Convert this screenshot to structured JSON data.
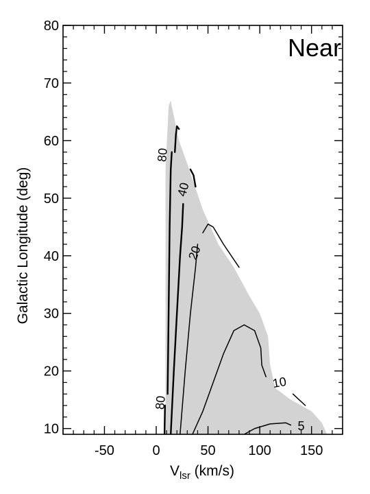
{
  "chart_data": {
    "type": "contour",
    "panel_label": "Near",
    "xlabel": {
      "main": "V",
      "sub": "lsr",
      "unit": " (km/s)"
    },
    "ylabel": "Galactic Longitude (deg)",
    "xlim": [
      -90,
      180
    ],
    "ylim": [
      9,
      80
    ],
    "xticks": [
      -50,
      0,
      50,
      100,
      150
    ],
    "yticks": [
      10,
      20,
      30,
      40,
      50,
      60,
      70,
      80
    ],
    "x_minor_step": 10,
    "y_minor_step": 2,
    "colors": {
      "region_fill": "#d3d3d3",
      "contour_line": "#000000",
      "axis": "#000000"
    },
    "shaded_region": [
      [
        9,
        9
      ],
      [
        9,
        55
      ],
      [
        12,
        66
      ],
      [
        14,
        67
      ],
      [
        15,
        66
      ],
      [
        22,
        60
      ],
      [
        30,
        56
      ],
      [
        45,
        48
      ],
      [
        60,
        42
      ],
      [
        75,
        38
      ],
      [
        90,
        33
      ],
      [
        100,
        30
      ],
      [
        108,
        26
      ],
      [
        110,
        21
      ],
      [
        115,
        17
      ],
      [
        130,
        15
      ],
      [
        150,
        13
      ],
      [
        160,
        11
      ],
      [
        165,
        9
      ]
    ],
    "contours": [
      {
        "level": "80",
        "points": [
          [
            11,
            16
          ],
          [
            12,
            30
          ],
          [
            13,
            45
          ],
          [
            14,
            55
          ],
          [
            15,
            58
          ]
        ]
      },
      {
        "level": "80",
        "points": [
          [
            18,
            58
          ],
          [
            19,
            61
          ],
          [
            20,
            62.5
          ],
          [
            22,
            62
          ]
        ]
      },
      {
        "level": "80",
        "points": [
          [
            8,
            9
          ],
          [
            8.5,
            14
          ]
        ]
      },
      {
        "level": "40",
        "points": [
          [
            14,
            9
          ],
          [
            17,
            20
          ],
          [
            20,
            30
          ],
          [
            23,
            40
          ],
          [
            25,
            45
          ],
          [
            26,
            49
          ]
        ]
      },
      {
        "level": "40",
        "points": [
          [
            33,
            55
          ],
          [
            36,
            54
          ],
          [
            38,
            52
          ]
        ]
      },
      {
        "level": "20",
        "points": [
          [
            23,
            9
          ],
          [
            28,
            20
          ],
          [
            33,
            30
          ],
          [
            38,
            38
          ],
          [
            40,
            42
          ]
        ]
      },
      {
        "level": "20",
        "points": [
          [
            45,
            44
          ],
          [
            50,
            45.5
          ],
          [
            55,
            45
          ],
          [
            65,
            42
          ],
          [
            80,
            38
          ]
        ]
      },
      {
        "level": "10",
        "points": [
          [
            35,
            9
          ],
          [
            45,
            13
          ],
          [
            55,
            18
          ],
          [
            65,
            23
          ],
          [
            75,
            27
          ],
          [
            85,
            28
          ],
          [
            95,
            27
          ],
          [
            101,
            24
          ],
          [
            102,
            21
          ],
          [
            106,
            19
          ]
        ]
      },
      {
        "level": "10",
        "points": [
          [
            132,
            16
          ],
          [
            138,
            15
          ],
          [
            144,
            14
          ]
        ]
      },
      {
        "level": "5",
        "points": [
          [
            85,
            9
          ],
          [
            95,
            10
          ],
          [
            110,
            10.8
          ],
          [
            125,
            11
          ],
          [
            130,
            10.6
          ]
        ]
      }
    ],
    "contour_labels": [
      {
        "text": "80",
        "x": 6,
        "y": 57.5,
        "angle": -85
      },
      {
        "text": "40",
        "x": 26,
        "y": 51.5,
        "angle": -75
      },
      {
        "text": "20",
        "x": 37,
        "y": 40.5,
        "angle": -70
      },
      {
        "text": "80",
        "x": 4,
        "y": 14.5,
        "angle": -85
      },
      {
        "text": "10",
        "x": 119,
        "y": 18,
        "angle": -10
      },
      {
        "text": "5",
        "x": 140,
        "y": 10.4,
        "angle": 0
      }
    ]
  }
}
